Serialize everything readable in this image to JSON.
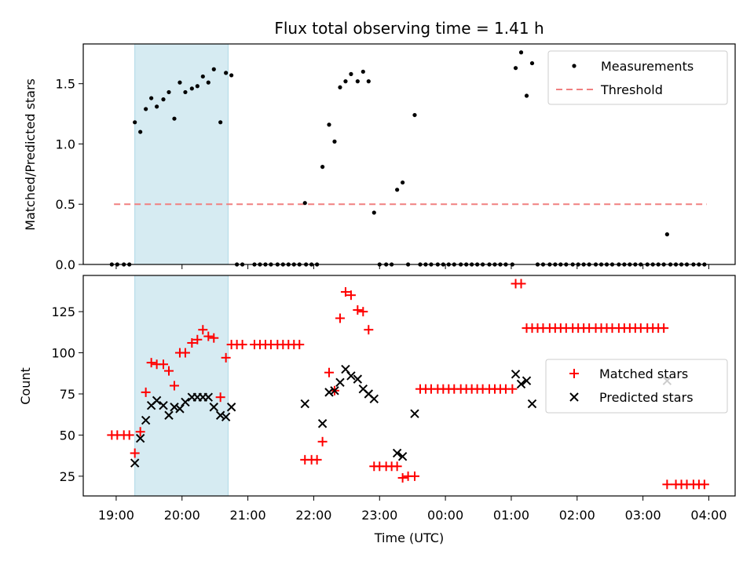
{
  "chart_data": [
    {
      "type": "scatter",
      "title": "Flux total observing time = 1.41 h",
      "xlabel": "",
      "ylabel": "Matched/Predicted stars",
      "xlim": [
        "18:30",
        "04:24"
      ],
      "ylim": [
        0,
        1.83
      ],
      "yticks": [
        0.0,
        0.5,
        1.0,
        1.5
      ],
      "ytick_labels": [
        "0.0",
        "0.5",
        "1.0",
        "1.5"
      ],
      "shaded_span": [
        "19:17",
        "20:42"
      ],
      "legend": {
        "placement": "top-right",
        "entries": [
          "Measurements",
          "Threshold"
        ]
      },
      "threshold": {
        "name": "Threshold",
        "value": 0.5,
        "x_start": "18:58",
        "x_end": "03:58",
        "color": "#f08080",
        "style": "dashed"
      },
      "series": [
        {
          "name": "Measurements",
          "color": "#000000",
          "marker": "dot",
          "points": [
            [
              "18:56",
              0
            ],
            [
              "19:01",
              0
            ],
            [
              "19:07",
              0
            ],
            [
              "19:12",
              0
            ],
            [
              "19:17",
              1.18
            ],
            [
              "19:22",
              1.1
            ],
            [
              "19:27",
              1.29
            ],
            [
              "19:32",
              1.38
            ],
            [
              "19:37",
              1.31
            ],
            [
              "19:43",
              1.37
            ],
            [
              "19:48",
              1.43
            ],
            [
              "19:53",
              1.21
            ],
            [
              "19:58",
              1.51
            ],
            [
              "20:03",
              1.43
            ],
            [
              "20:09",
              1.46
            ],
            [
              "20:14",
              1.48
            ],
            [
              "20:19",
              1.56
            ],
            [
              "20:24",
              1.51
            ],
            [
              "20:29",
              1.62
            ],
            [
              "20:35",
              1.18
            ],
            [
              "20:40",
              1.59
            ],
            [
              "20:45",
              1.57
            ],
            [
              "20:50",
              0
            ],
            [
              "20:55",
              0
            ],
            [
              "21:06",
              0
            ],
            [
              "21:11",
              0
            ],
            [
              "21:16",
              0
            ],
            [
              "21:21",
              0
            ],
            [
              "21:27",
              0
            ],
            [
              "21:32",
              0
            ],
            [
              "21:37",
              0
            ],
            [
              "21:42",
              0
            ],
            [
              "21:47",
              0
            ],
            [
              "21:53",
              0
            ],
            [
              "21:52",
              0.51
            ],
            [
              "21:58",
              0
            ],
            [
              "22:03",
              0
            ],
            [
              "22:08",
              0.81
            ],
            [
              "22:14",
              1.16
            ],
            [
              "22:19",
              1.02
            ],
            [
              "22:24",
              1.47
            ],
            [
              "22:29",
              1.52
            ],
            [
              "22:34",
              1.58
            ],
            [
              "22:40",
              1.52
            ],
            [
              "22:45",
              1.6
            ],
            [
              "22:50",
              1.52
            ],
            [
              "22:55",
              0.43
            ],
            [
              "23:00",
              0
            ],
            [
              "23:06",
              0
            ],
            [
              "23:11",
              0
            ],
            [
              "23:16",
              0.62
            ],
            [
              "23:21",
              0.68
            ],
            [
              "23:26",
              0
            ],
            [
              "23:32",
              1.24
            ],
            [
              "23:37",
              0
            ],
            [
              "23:42",
              0
            ],
            [
              "23:47",
              0
            ],
            [
              "23:53",
              0
            ],
            [
              "23:58",
              0
            ],
            [
              "00:03",
              0
            ],
            [
              "00:08",
              0
            ],
            [
              "00:14",
              0
            ],
            [
              "00:19",
              0
            ],
            [
              "00:24",
              0
            ],
            [
              "00:29",
              0
            ],
            [
              "00:34",
              0
            ],
            [
              "00:40",
              0
            ],
            [
              "00:45",
              0
            ],
            [
              "00:50",
              0
            ],
            [
              "00:55",
              0
            ],
            [
              "01:01",
              0
            ],
            [
              "01:04",
              1.63
            ],
            [
              "01:09",
              1.76
            ],
            [
              "01:14",
              1.4
            ],
            [
              "01:19",
              1.67
            ],
            [
              "01:24",
              0
            ],
            [
              "01:29",
              0
            ],
            [
              "01:35",
              0
            ],
            [
              "01:40",
              0
            ],
            [
              "01:45",
              0
            ],
            [
              "01:50",
              0
            ],
            [
              "01:56",
              0
            ],
            [
              "02:01",
              0
            ],
            [
              "02:06",
              0
            ],
            [
              "02:11",
              0
            ],
            [
              "02:17",
              0
            ],
            [
              "02:22",
              0
            ],
            [
              "02:27",
              0
            ],
            [
              "02:32",
              0
            ],
            [
              "02:38",
              0
            ],
            [
              "02:43",
              0
            ],
            [
              "02:48",
              0
            ],
            [
              "02:53",
              0
            ],
            [
              "02:58",
              0
            ],
            [
              "03:04",
              0
            ],
            [
              "03:09",
              0
            ],
            [
              "03:14",
              0
            ],
            [
              "03:19",
              0
            ],
            [
              "03:25",
              0
            ],
            [
              "03:22",
              0.25
            ],
            [
              "03:30",
              0
            ],
            [
              "03:35",
              0
            ],
            [
              "03:40",
              0
            ],
            [
              "03:46",
              0
            ],
            [
              "03:51",
              0
            ],
            [
              "03:56",
              0
            ]
          ]
        }
      ]
    },
    {
      "type": "scatter",
      "title": "",
      "xlabel": "Time (UTC)",
      "ylabel": "Count",
      "xlim": [
        "18:30",
        "04:24"
      ],
      "ylim": [
        13,
        147
      ],
      "yticks": [
        25,
        50,
        75,
        100,
        125
      ],
      "ytick_labels": [
        "25",
        "50",
        "75",
        "100",
        "125"
      ],
      "xticks": [
        "19:00",
        "20:00",
        "21:00",
        "22:00",
        "23:00",
        "00:00",
        "01:00",
        "02:00",
        "03:00",
        "04:00"
      ],
      "xtick_labels": [
        "19:00",
        "20:00",
        "21:00",
        "22:00",
        "23:00",
        "00:00",
        "01:00",
        "02:00",
        "03:00",
        "04:00"
      ],
      "shaded_span": [
        "19:17",
        "20:42"
      ],
      "legend": {
        "placement": "center-right",
        "entries": [
          "Matched stars",
          "Predicted stars"
        ]
      },
      "series": [
        {
          "name": "Matched stars",
          "color": "#ff0000",
          "marker": "plus",
          "points": [
            [
              "18:56",
              50
            ],
            [
              "19:01",
              50
            ],
            [
              "19:07",
              50
            ],
            [
              "19:12",
              50
            ],
            [
              "19:17",
              39
            ],
            [
              "19:22",
              52
            ],
            [
              "19:27",
              76
            ],
            [
              "19:32",
              94
            ],
            [
              "19:37",
              93
            ],
            [
              "19:43",
              93
            ],
            [
              "19:48",
              89
            ],
            [
              "19:53",
              80
            ],
            [
              "19:58",
              100
            ],
            [
              "20:03",
              100
            ],
            [
              "20:09",
              106
            ],
            [
              "20:14",
              108
            ],
            [
              "20:19",
              114
            ],
            [
              "20:24",
              110
            ],
            [
              "20:29",
              109
            ],
            [
              "20:35",
              73
            ],
            [
              "20:40",
              97
            ],
            [
              "20:45",
              105
            ],
            [
              "20:50",
              105
            ],
            [
              "20:55",
              105
            ],
            [
              "21:06",
              105
            ],
            [
              "21:11",
              105
            ],
            [
              "21:16",
              105
            ],
            [
              "21:21",
              105
            ],
            [
              "21:27",
              105
            ],
            [
              "21:32",
              105
            ],
            [
              "21:37",
              105
            ],
            [
              "21:42",
              105
            ],
            [
              "21:47",
              105
            ],
            [
              "21:52",
              35
            ],
            [
              "21:58",
              35
            ],
            [
              "22:03",
              35
            ],
            [
              "22:08",
              46
            ],
            [
              "22:14",
              88
            ],
            [
              "22:19",
              77
            ],
            [
              "22:24",
              121
            ],
            [
              "22:29",
              137
            ],
            [
              "22:34",
              135
            ],
            [
              "22:40",
              126
            ],
            [
              "22:45",
              125
            ],
            [
              "22:50",
              114
            ],
            [
              "22:55",
              31
            ],
            [
              "23:00",
              31
            ],
            [
              "23:06",
              31
            ],
            [
              "23:11",
              31
            ],
            [
              "23:16",
              31
            ],
            [
              "23:21",
              24
            ],
            [
              "23:26",
              25
            ],
            [
              "23:32",
              25
            ],
            [
              "23:37",
              78
            ],
            [
              "23:42",
              78
            ],
            [
              "23:47",
              78
            ],
            [
              "23:53",
              78
            ],
            [
              "23:58",
              78
            ],
            [
              "00:03",
              78
            ],
            [
              "00:08",
              78
            ],
            [
              "00:14",
              78
            ],
            [
              "00:19",
              78
            ],
            [
              "00:24",
              78
            ],
            [
              "00:29",
              78
            ],
            [
              "00:34",
              78
            ],
            [
              "00:40",
              78
            ],
            [
              "00:45",
              78
            ],
            [
              "00:50",
              78
            ],
            [
              "00:55",
              78
            ],
            [
              "01:01",
              78
            ],
            [
              "01:04",
              142
            ],
            [
              "01:09",
              142
            ],
            [
              "01:14",
              115
            ],
            [
              "01:19",
              115
            ],
            [
              "01:24",
              115
            ],
            [
              "01:29",
              115
            ],
            [
              "01:35",
              115
            ],
            [
              "01:40",
              115
            ],
            [
              "01:45",
              115
            ],
            [
              "01:50",
              115
            ],
            [
              "01:56",
              115
            ],
            [
              "02:01",
              115
            ],
            [
              "02:06",
              115
            ],
            [
              "02:11",
              115
            ],
            [
              "02:17",
              115
            ],
            [
              "02:22",
              115
            ],
            [
              "02:27",
              115
            ],
            [
              "02:32",
              115
            ],
            [
              "02:38",
              115
            ],
            [
              "02:43",
              115
            ],
            [
              "02:48",
              115
            ],
            [
              "02:53",
              115
            ],
            [
              "02:58",
              115
            ],
            [
              "03:04",
              115
            ],
            [
              "03:09",
              115
            ],
            [
              "03:14",
              115
            ],
            [
              "03:19",
              115
            ],
            [
              "03:22",
              20
            ],
            [
              "03:30",
              20
            ],
            [
              "03:35",
              20
            ],
            [
              "03:40",
              20
            ],
            [
              "03:46",
              20
            ],
            [
              "03:51",
              20
            ],
            [
              "03:56",
              20
            ]
          ]
        },
        {
          "name": "Predicted stars",
          "color": "#000000",
          "marker": "x",
          "points": [
            [
              "19:17",
              33
            ],
            [
              "19:22",
              48
            ],
            [
              "19:27",
              59
            ],
            [
              "19:32",
              68
            ],
            [
              "19:37",
              71
            ],
            [
              "19:43",
              68
            ],
            [
              "19:48",
              62
            ],
            [
              "19:53",
              67
            ],
            [
              "19:58",
              66
            ],
            [
              "20:03",
              70
            ],
            [
              "20:09",
              73
            ],
            [
              "20:14",
              73
            ],
            [
              "20:19",
              73
            ],
            [
              "20:24",
              73
            ],
            [
              "20:29",
              67
            ],
            [
              "20:35",
              62
            ],
            [
              "20:40",
              61
            ],
            [
              "20:45",
              67
            ],
            [
              "21:52",
              69
            ],
            [
              "22:08",
              57
            ],
            [
              "22:14",
              76
            ],
            [
              "22:19",
              77
            ],
            [
              "22:24",
              82
            ],
            [
              "22:29",
              90
            ],
            [
              "22:34",
              86
            ],
            [
              "22:40",
              84
            ],
            [
              "22:45",
              78
            ],
            [
              "22:50",
              75
            ],
            [
              "22:55",
              72
            ],
            [
              "23:16",
              39
            ],
            [
              "23:21",
              37
            ],
            [
              "23:32",
              63
            ],
            [
              "01:04",
              87
            ],
            [
              "01:09",
              81
            ],
            [
              "01:14",
              83
            ],
            [
              "01:19",
              69
            ],
            [
              "03:22",
              83
            ]
          ]
        }
      ]
    }
  ]
}
